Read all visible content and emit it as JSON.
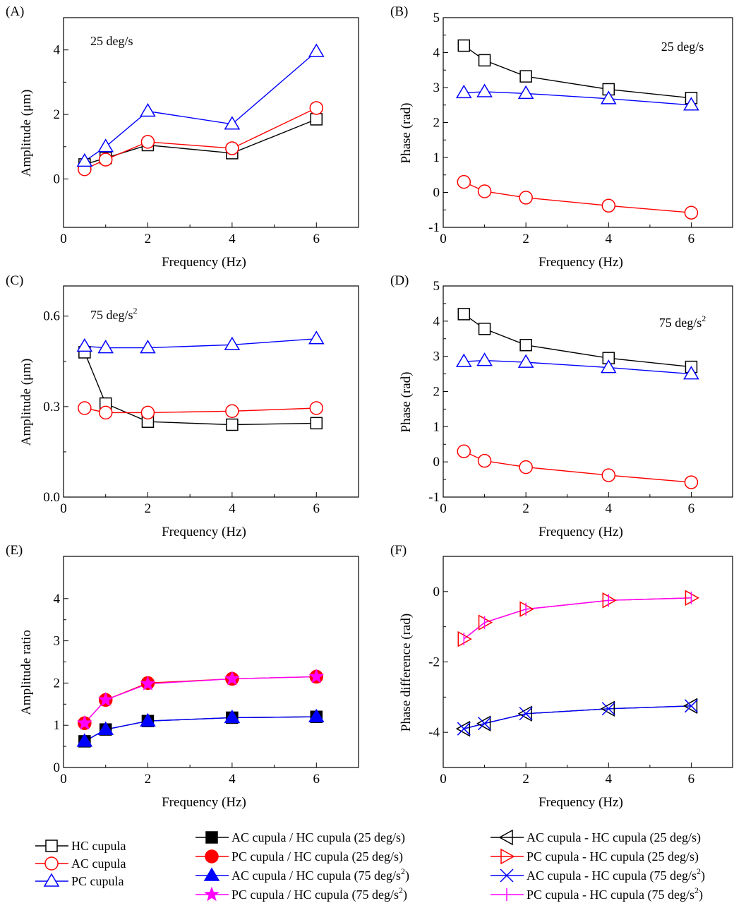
{
  "chart_data": [
    {
      "panel_label": "(A)",
      "type": "line",
      "annotation": "25 deg/s",
      "xlabel": "Frequency (Hz)",
      "ylabel": "Amplitude (μm)",
      "xlim": [
        0,
        7
      ],
      "ylim": [
        -1.5,
        5
      ],
      "xticks": [
        0,
        2,
        4,
        6
      ],
      "yticks": [
        0,
        2,
        4
      ],
      "x": [
        0.5,
        1,
        2,
        4,
        6
      ],
      "series": [
        {
          "name": "HC cupula",
          "color": "#000000",
          "marker": "square-open",
          "values": [
            0.45,
            0.65,
            1.05,
            0.8,
            1.85
          ]
        },
        {
          "name": "AC cupula",
          "color": "#ff0000",
          "marker": "circle-open",
          "values": [
            0.3,
            0.6,
            1.15,
            0.95,
            2.2
          ]
        },
        {
          "name": "PC cupula",
          "color": "#0000ff",
          "marker": "triangle-up-open",
          "values": [
            0.55,
            1.0,
            2.1,
            1.7,
            3.95
          ]
        }
      ]
    },
    {
      "panel_label": "(B)",
      "type": "line",
      "annotation": "25 deg/s",
      "xlabel": "Frequency (Hz)",
      "ylabel": "Phase (rad)",
      "xlim": [
        0,
        7
      ],
      "ylim": [
        -1,
        5
      ],
      "xticks": [
        0,
        2,
        4,
        6
      ],
      "yticks": [
        -1,
        0,
        1,
        2,
        3,
        4,
        5
      ],
      "x": [
        0.5,
        1,
        2,
        4,
        6
      ],
      "series": [
        {
          "name": "HC cupula",
          "color": "#000000",
          "marker": "square-open",
          "values": [
            4.2,
            3.78,
            3.32,
            2.95,
            2.7
          ]
        },
        {
          "name": "AC cupula",
          "color": "#ff0000",
          "marker": "circle-open",
          "values": [
            0.3,
            0.03,
            -0.15,
            -0.38,
            -0.58
          ]
        },
        {
          "name": "PC cupula",
          "color": "#0000ff",
          "marker": "triangle-up-open",
          "values": [
            2.85,
            2.88,
            2.83,
            2.68,
            2.5
          ]
        }
      ]
    },
    {
      "panel_label": "(C)",
      "type": "line",
      "annotation": "75 deg/s",
      "annotation_sup": "2",
      "xlabel": "Frequency (Hz)",
      "ylabel": "Amplitude (μm)",
      "xlim": [
        0,
        7
      ],
      "ylim": [
        0,
        0.7
      ],
      "xticks": [
        0,
        2,
        4,
        6
      ],
      "yticks": [
        0.0,
        0.3,
        0.6
      ],
      "ytick_labels": [
        "0.0",
        "0.3",
        "0.6"
      ],
      "x": [
        0.5,
        1,
        2,
        4,
        6
      ],
      "series": [
        {
          "name": "HC cupula",
          "color": "#000000",
          "marker": "square-open",
          "values": [
            0.48,
            0.31,
            0.25,
            0.24,
            0.245
          ]
        },
        {
          "name": "AC cupula",
          "color": "#ff0000",
          "marker": "circle-open",
          "values": [
            0.295,
            0.28,
            0.28,
            0.285,
            0.295
          ]
        },
        {
          "name": "PC cupula",
          "color": "#0000ff",
          "marker": "triangle-up-open",
          "values": [
            0.5,
            0.495,
            0.495,
            0.505,
            0.525
          ]
        }
      ]
    },
    {
      "panel_label": "(D)",
      "type": "line",
      "annotation": "75 deg/s",
      "annotation_sup": "2",
      "xlabel": "Frequency (Hz)",
      "ylabel": "Phase (rad)",
      "xlim": [
        0,
        7
      ],
      "ylim": [
        -1,
        5
      ],
      "xticks": [
        0,
        2,
        4,
        6
      ],
      "yticks": [
        -1,
        0,
        1,
        2,
        3,
        4,
        5
      ],
      "x": [
        0.5,
        1,
        2,
        4,
        6
      ],
      "series": [
        {
          "name": "HC cupula",
          "color": "#000000",
          "marker": "square-open",
          "values": [
            4.2,
            3.78,
            3.32,
            2.95,
            2.7
          ]
        },
        {
          "name": "AC cupula",
          "color": "#ff0000",
          "marker": "circle-open",
          "values": [
            0.3,
            0.03,
            -0.15,
            -0.38,
            -0.58
          ]
        },
        {
          "name": "PC cupula",
          "color": "#0000ff",
          "marker": "triangle-up-open",
          "values": [
            2.85,
            2.88,
            2.83,
            2.68,
            2.5
          ]
        }
      ]
    },
    {
      "panel_label": "(E)",
      "type": "line",
      "xlabel": "Frequency (Hz)",
      "ylabel": "Amplitude ratio",
      "xlim": [
        0,
        7
      ],
      "ylim": [
        0,
        5
      ],
      "xticks": [
        0,
        2,
        4,
        6
      ],
      "yticks": [
        0,
        1,
        2,
        3,
        4
      ],
      "x": [
        0.5,
        1,
        2,
        4,
        6
      ],
      "series": [
        {
          "name": "AC cupula / HC cupula (25 deg/s)",
          "color": "#000000",
          "marker": "square-filled",
          "values": [
            0.62,
            0.9,
            1.1,
            1.18,
            1.2
          ]
        },
        {
          "name": "PC cupula / HC cupula (25 deg/s)",
          "color": "#ff0000",
          "marker": "circle-filled",
          "values": [
            1.05,
            1.6,
            2.0,
            2.1,
            2.15
          ]
        },
        {
          "name": "AC cupula / HC cupula (75 deg/s²)",
          "color": "#0000ff",
          "marker": "triangle-up-filled",
          "values": [
            0.62,
            0.9,
            1.1,
            1.18,
            1.2
          ]
        },
        {
          "name": "PC cupula / HC cupula (75 deg/s²)",
          "color": "#ff00ff",
          "marker": "star-filled",
          "values": [
            1.05,
            1.6,
            1.98,
            2.1,
            2.15
          ]
        }
      ]
    },
    {
      "panel_label": "(F)",
      "type": "line",
      "xlabel": "Frequency (Hz)",
      "ylabel": "Phase difference (rad)",
      "xlim": [
        0,
        7
      ],
      "ylim": [
        -5,
        1
      ],
      "xticks": [
        0,
        2,
        4,
        6
      ],
      "yticks": [
        -4,
        -2,
        0
      ],
      "x": [
        0.5,
        1,
        2,
        4,
        6
      ],
      "series": [
        {
          "name": "AC cupula - HC cupula (25 deg/s)",
          "color": "#000000",
          "marker": "triangle-left-open",
          "values": [
            -3.9,
            -3.75,
            -3.47,
            -3.33,
            -3.25
          ]
        },
        {
          "name": "PC cupula - HC cupula (25 deg/s)",
          "color": "#ff0000",
          "marker": "triangle-right-open",
          "values": [
            -1.35,
            -0.88,
            -0.5,
            -0.25,
            -0.18
          ]
        },
        {
          "name": "AC cupula - HC cupula (75 deg/s²)",
          "color": "#0000ff",
          "marker": "x",
          "values": [
            -3.9,
            -3.75,
            -3.47,
            -3.33,
            -3.25
          ]
        },
        {
          "name": "PC cupula - HC cupula (75 deg/s²)",
          "color": "#ff00ff",
          "marker": "vbar",
          "values": [
            -1.35,
            -0.88,
            -0.5,
            -0.25,
            -0.18
          ]
        }
      ]
    }
  ],
  "series_styles": {
    "line": {
      "HC cupula": "#000000",
      "AC cupula": "#ff0000",
      "PC cupula": "#0000ff"
    }
  },
  "legends": [
    {
      "entries": [
        {
          "label": "HC cupula",
          "color": "#000000",
          "marker": "square-open"
        },
        {
          "label": "AC cupula",
          "color": "#ff0000",
          "marker": "circle-open"
        },
        {
          "label": "PC cupula",
          "color": "#0000ff",
          "marker": "triangle-up-open"
        }
      ]
    },
    {
      "entries": [
        {
          "label": "AC cupula / HC cupula (25 deg/s)",
          "color": "#000000",
          "marker": "square-filled"
        },
        {
          "label": "PC cupula / HC cupula (25 deg/s)",
          "color": "#ff0000",
          "marker": "circle-filled"
        },
        {
          "label": "AC cupula / HC cupula (75 deg/s",
          "sup": "2",
          "tail": ")",
          "color": "#0000ff",
          "marker": "triangle-up-filled"
        },
        {
          "label": "PC cupula / HC cupula (75 deg/s",
          "sup": "2",
          "tail": ")",
          "color": "#ff00ff",
          "marker": "star-filled"
        }
      ]
    },
    {
      "entries": [
        {
          "label": "AC cupula - HC cupula (25 deg/s)",
          "color": "#000000",
          "marker": "triangle-left-open"
        },
        {
          "label": "PC cupula - HC cupula (25 deg/s)",
          "color": "#ff0000",
          "marker": "triangle-right-open"
        },
        {
          "label": "AC cupula - HC cupula (75 deg/s",
          "sup": "2",
          "tail": ")",
          "color": "#0000ff",
          "marker": "x"
        },
        {
          "label": "PC cupula - HC cupula (75 deg/s",
          "sup": "2",
          "tail": ")",
          "color": "#ff00ff",
          "marker": "vbar"
        }
      ]
    }
  ]
}
